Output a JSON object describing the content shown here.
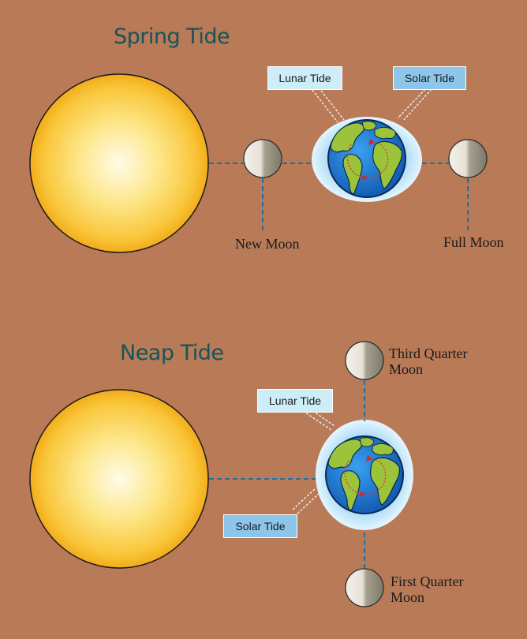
{
  "spring": {
    "title": "Spring Tide",
    "lunar_tide": "Lunar Tide",
    "solar_tide": "Solar Tide",
    "new_moon": "New Moon",
    "full_moon": "Full Moon"
  },
  "neap": {
    "title": "Neap Tide",
    "lunar_tide": "Lunar Tide",
    "solar_tide": "Solar Tide",
    "third_quarter_line1": "Third Quarter",
    "third_quarter_line2": "Moon",
    "first_quarter_line1": "First Quarter",
    "first_quarter_line2": "Moon"
  },
  "colors": {
    "background": "#b87a57",
    "title": "#15545a",
    "lunar_label": "#cdeef8",
    "solar_label": "#8ec6ea",
    "sun_core": "#fffbe8",
    "sun_edge": "#f6b21c",
    "ocean": "#1e7ed6",
    "land": "#9cc43a",
    "tide_bulge": "#cfeefc",
    "connector": "#1f6fa0"
  },
  "icons": [
    "sun-icon",
    "earth-icon",
    "moon-icon"
  ]
}
